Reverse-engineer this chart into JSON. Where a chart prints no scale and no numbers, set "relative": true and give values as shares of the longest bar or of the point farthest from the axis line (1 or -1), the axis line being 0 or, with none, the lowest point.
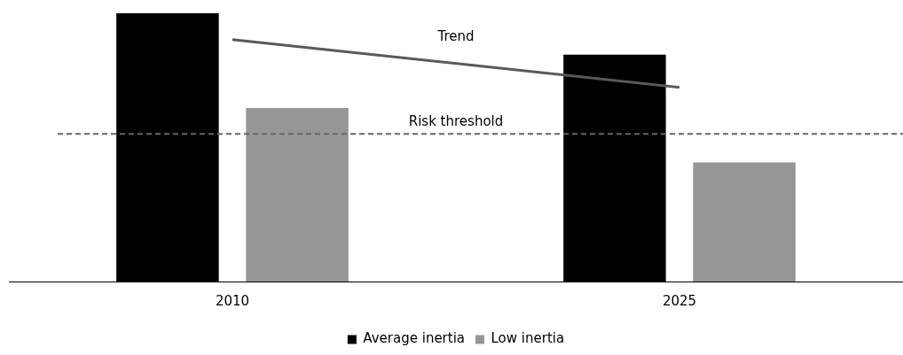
{
  "chart_data": {
    "type": "bar",
    "relative": true,
    "categories": [
      "2010",
      "2025"
    ],
    "series": [
      {
        "name": "Average inertia",
        "color": "#000000",
        "values": [
          1,
          0.846
        ]
      },
      {
        "name": "Low inertia",
        "color": "#969696",
        "values": [
          0.647,
          0.444
        ]
      },
      {
        "name": "Trend",
        "type": "line",
        "color": "#595959",
        "values": [
          0.902,
          0.724
        ],
        "marker": "none",
        "line_style": "solid"
      }
    ],
    "ref_lines": [
      {
        "axis": "y",
        "value": 0.55,
        "label": "Risk threshold",
        "color": "#666666",
        "line_style": "dashed"
      }
    ],
    "legend": "bottom",
    "grid": false
  }
}
